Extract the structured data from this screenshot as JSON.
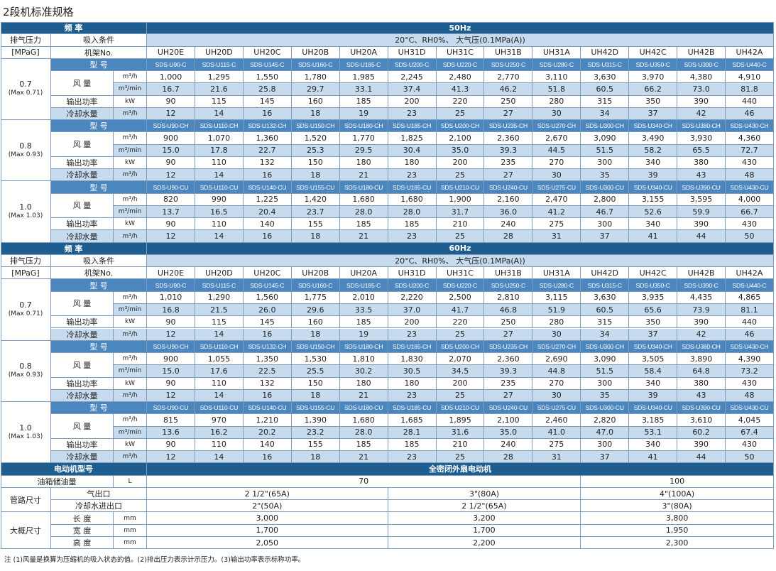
{
  "title": "2段机标准规格",
  "sections": [
    {
      "freq_label": "频 率",
      "freq": "50Hz",
      "pressure_label": "排气压力",
      "pressure_unit": "[MPaG]",
      "intake_label": "吸入条件",
      "intake": "20°C、RH0%、 大气压(0.1MPa(A))",
      "frame_label": "机架No.",
      "frames": [
        "UH20E",
        "UH20D",
        "UH20C",
        "UH20B",
        "UH20A",
        "UH31D",
        "UH31C",
        "UH31B",
        "UH31A",
        "UH42D",
        "UH42C",
        "UH42B",
        "UH42A"
      ],
      "groups": [
        {
          "pressure": "0.7",
          "max": "(Max 0.71)",
          "model_label": "型 号",
          "models": [
            "SDS-U90-C",
            "SDS-U115-C",
            "SDS-U145-C",
            "SDS-U160-C",
            "SDS-U185-C",
            "SDS-U200-C",
            "SDS-U220-C",
            "SDS-U250-C",
            "SDS-U280-C",
            "SDS-U315-C",
            "SDS-U350-C",
            "SDS-U390-C",
            "SDS-U440-C"
          ],
          "airflow_label": "风 量",
          "airflow_h": {
            "unit": "m³/h",
            "values": [
              "1,000",
              "1,295",
              "1,550",
              "1,780",
              "1,985",
              "2,245",
              "2,480",
              "2,770",
              "3,110",
              "3,630",
              "3,970",
              "4,380",
              "4,910"
            ]
          },
          "airflow_min": {
            "unit": "m³/min",
            "values": [
              "16.7",
              "21.6",
              "25.8",
              "29.7",
              "33.1",
              "37.4",
              "41.3",
              "46.2",
              "51.8",
              "60.5",
              "66.2",
              "73.0",
              "81.8"
            ]
          },
          "power": {
            "label": "输出功率",
            "unit": "kW",
            "values": [
              "90",
              "115",
              "145",
              "160",
              "185",
              "200",
              "220",
              "250",
              "280",
              "315",
              "350",
              "390",
              "440"
            ]
          },
          "cooling": {
            "label": "冷却水量",
            "unit": "m³/h",
            "values": [
              "12",
              "14",
              "16",
              "18",
              "19",
              "23",
              "25",
              "27",
              "30",
              "34",
              "37",
              "42",
              "46"
            ]
          }
        },
        {
          "pressure": "0.8",
          "max": "(Max 0.93)",
          "model_label": "型 号",
          "models": [
            "SDS-U90-CH",
            "SDS-U110-CH",
            "SDS-U132-CH",
            "SDS-U150-CH",
            "SDS-U180-CH",
            "SDS-U185-CH",
            "SDS-U200-CH",
            "SDS-U235-CH",
            "SDS-U270-CH",
            "SDS-U300-CH",
            "SDS-U340-CH",
            "SDS-U380-CH",
            "SDS-U430-CH"
          ],
          "airflow_label": "风 量",
          "airflow_h": {
            "unit": "m³/h",
            "values": [
              "900",
              "1,070",
              "1,360",
              "1,520",
              "1,770",
              "1,825",
              "2,100",
              "2,360",
              "2,670",
              "3,090",
              "3,490",
              "3,930",
              "4,360"
            ]
          },
          "airflow_min": {
            "unit": "m³/min",
            "values": [
              "15.0",
              "17.8",
              "22.7",
              "25.3",
              "29.5",
              "30.4",
              "35.0",
              "39.3",
              "44.5",
              "51.5",
              "58.2",
              "65.5",
              "72.7"
            ]
          },
          "power": {
            "label": "输出功率",
            "unit": "kW",
            "values": [
              "90",
              "110",
              "132",
              "150",
              "180",
              "180",
              "200",
              "235",
              "270",
              "300",
              "340",
              "380",
              "430"
            ]
          },
          "cooling": {
            "label": "冷却水量",
            "unit": "m³/h",
            "values": [
              "12",
              "14",
              "16",
              "18",
              "21",
              "23",
              "25",
              "27",
              "30",
              "35",
              "39",
              "43",
              "48"
            ]
          }
        },
        {
          "pressure": "1.0",
          "max": "(Max 1.03)",
          "model_label": "型 号",
          "models": [
            "SDS-U90-CU",
            "SDS-U110-CU",
            "SDS-U140-CU",
            "SDS-U155-CU",
            "SDS-U180-CU",
            "SDS-U185-CU",
            "SDS-U210-CU",
            "SDS-U240-CU",
            "SDS-U275-CU",
            "SDS-U300-CU",
            "SDS-U340-CU",
            "SDS-U390-CU",
            "SDS-U430-CU"
          ],
          "airflow_label": "风 量",
          "airflow_h": {
            "unit": "m³/h",
            "values": [
              "820",
              "990",
              "1,225",
              "1,420",
              "1,680",
              "1,680",
              "1,900",
              "2,160",
              "2,470",
              "2,800",
              "3,155",
              "3,595",
              "4,000"
            ]
          },
          "airflow_min": {
            "unit": "m³/min",
            "values": [
              "13.7",
              "16.5",
              "20.4",
              "23.7",
              "28.0",
              "28.0",
              "31.7",
              "36.0",
              "41.2",
              "46.7",
              "52.6",
              "59.9",
              "66.7"
            ]
          },
          "power": {
            "label": "输出功率",
            "unit": "kW",
            "values": [
              "90",
              "110",
              "140",
              "155",
              "185",
              "185",
              "210",
              "240",
              "275",
              "300",
              "340",
              "390",
              "430"
            ]
          },
          "cooling": {
            "label": "冷却水量",
            "unit": "m³/h",
            "values": [
              "12",
              "14",
              "16",
              "18",
              "21",
              "23",
              "25",
              "28",
              "31",
              "37",
              "41",
              "44",
              "50"
            ]
          }
        }
      ]
    },
    {
      "freq_label": "频 率",
      "freq": "60Hz",
      "pressure_label": "排气压力",
      "pressure_unit": "[MPaG]",
      "intake_label": "吸入条件",
      "intake": "20°C、RH0%、 大气压(0.1MPa(A))",
      "frame_label": "机架No.",
      "frames": [
        "UH20E",
        "UH20D",
        "UH20C",
        "UH20B",
        "UH20A",
        "UH31D",
        "UH31C",
        "UH31B",
        "UH31A",
        "UH42D",
        "UH42C",
        "UH42B",
        "UH42A"
      ],
      "groups": [
        {
          "pressure": "0.7",
          "max": "(Max 0.71)",
          "model_label": "型 号",
          "models": [
            "SDS-U90-C",
            "SDS-U115-C",
            "SDS-U145-C",
            "SDS-U160-C",
            "SDS-U185-C",
            "SDS-U200-C",
            "SDS-U220-C",
            "SDS-U250-C",
            "SDS-U280-C",
            "SDS-U315-C",
            "SDS-U350-C",
            "SDS-U390-C",
            "SDS-U440-C"
          ],
          "airflow_label": "风 量",
          "airflow_h": {
            "unit": "m³/h",
            "values": [
              "1,010",
              "1,290",
              "1,560",
              "1,775",
              "2,010",
              "2,220",
              "2,500",
              "2,810",
              "3,115",
              "3,630",
              "3,935",
              "4,435",
              "4,865"
            ]
          },
          "airflow_min": {
            "unit": "m³/min",
            "values": [
              "16.8",
              "21.5",
              "26.0",
              "29.6",
              "33.5",
              "37.0",
              "41.7",
              "46.8",
              "51.9",
              "60.5",
              "65.6",
              "73.9",
              "81.1"
            ]
          },
          "power": {
            "label": "输出功率",
            "unit": "kW",
            "values": [
              "90",
              "115",
              "145",
              "160",
              "185",
              "200",
              "220",
              "250",
              "280",
              "315",
              "350",
              "390",
              "440"
            ]
          },
          "cooling": {
            "label": "冷却水量",
            "unit": "m³/h",
            "values": [
              "12",
              "14",
              "16",
              "18",
              "19",
              "23",
              "25",
              "27",
              "30",
              "34",
              "37",
              "42",
              "46"
            ]
          }
        },
        {
          "pressure": "0.8",
          "max": "(Max 0.93)",
          "model_label": "型 号",
          "models": [
            "SDS-U90-CH",
            "SDS-U110-CH",
            "SDS-U132-CH",
            "SDS-U150-CH",
            "SDS-U180-CH",
            "SDS-U185-CH",
            "SDS-U200-CH",
            "SDS-U235-CH",
            "SDS-U270-CH",
            "SDS-U300-CH",
            "SDS-U340-CH",
            "SDS-U380-CH",
            "SDS-U430-CH"
          ],
          "airflow_label": "风 量",
          "airflow_h": {
            "unit": "m³/h",
            "values": [
              "900",
              "1,055",
              "1,350",
              "1,530",
              "1,810",
              "1,830",
              "2,070",
              "2,360",
              "2,690",
              "3,090",
              "3,505",
              "3,890",
              "4,390"
            ]
          },
          "airflow_min": {
            "unit": "m³/min",
            "values": [
              "15.0",
              "17.6",
              "22.5",
              "25.5",
              "30.2",
              "30.5",
              "34.5",
              "39.3",
              "44.8",
              "51.5",
              "58.4",
              "64.8",
              "73.2"
            ]
          },
          "power": {
            "label": "输出功率",
            "unit": "kW",
            "values": [
              "90",
              "110",
              "132",
              "150",
              "180",
              "180",
              "200",
              "235",
              "270",
              "300",
              "340",
              "380",
              "430"
            ]
          },
          "cooling": {
            "label": "冷却水量",
            "unit": "m³/h",
            "values": [
              "12",
              "14",
              "16",
              "18",
              "21",
              "23",
              "25",
              "27",
              "30",
              "35",
              "39",
              "43",
              "48"
            ]
          }
        },
        {
          "pressure": "1.0",
          "max": "(Max 1.03)",
          "model_label": "型 号",
          "models": [
            "SDS-U90-CU",
            "SDS-U110-CU",
            "SDS-U140-CU",
            "SDS-U155-CU",
            "SDS-U180-CU",
            "SDS-U185-CU",
            "SDS-U210-CU",
            "SDS-U240-CU",
            "SDS-U275-CU",
            "SDS-U300-CU",
            "SDS-U340-CU",
            "SDS-U390-CU",
            "SDS-U430-CU"
          ],
          "airflow_label": "风 量",
          "airflow_h": {
            "unit": "m³/h",
            "values": [
              "815",
              "970",
              "1,210",
              "1,390",
              "1,680",
              "1,685",
              "1,895",
              "2,100",
              "2,460",
              "2,820",
              "3,185",
              "3,610",
              "4,045"
            ]
          },
          "airflow_min": {
            "unit": "m³/min",
            "values": [
              "13.6",
              "16.2",
              "20.2",
              "23.2",
              "28.0",
              "28.1",
              "31.6",
              "35.0",
              "41.0",
              "47.0",
              "53.1",
              "60.2",
              "67.4"
            ]
          },
          "power": {
            "label": "输出功率",
            "unit": "kW",
            "values": [
              "90",
              "110",
              "140",
              "155",
              "185",
              "185",
              "210",
              "240",
              "275",
              "300",
              "340",
              "390",
              "430"
            ]
          },
          "cooling": {
            "label": "冷却水量",
            "unit": "m³/h",
            "values": [
              "12",
              "14",
              "16",
              "18",
              "21",
              "23",
              "25",
              "28",
              "31",
              "37",
              "41",
              "44",
              "50"
            ]
          }
        }
      ]
    }
  ],
  "motor": {
    "label": "电动机型号",
    "value": "全密闭外扇电动机"
  },
  "oil": {
    "label": "油箱储油量",
    "unit": "L",
    "values": [
      "70",
      "100"
    ]
  },
  "piping": {
    "label": "管路尺寸",
    "rows": [
      {
        "label": "气出口",
        "values": [
          "2 1/2\"(65A)",
          "3\"(80A)",
          "4\"(100A)"
        ]
      },
      {
        "label": "冷却水进出口",
        "values": [
          "2\"(50A)",
          "2 1/2\"(65A)",
          "3\"(80A)"
        ]
      }
    ]
  },
  "dimensions": {
    "label": "大概尺寸",
    "rows": [
      {
        "label": "长 度",
        "unit": "mm",
        "values": [
          "3,000",
          "3,200",
          "3,800"
        ]
      },
      {
        "label": "宽 度",
        "unit": "mm",
        "values": [
          "1,700",
          "1,700",
          "1,950"
        ]
      },
      {
        "label": "高 度",
        "unit": "mm",
        "values": [
          "2,050",
          "2,200",
          "2,300"
        ]
      }
    ]
  },
  "note": "注 (1)风量是换算为压缩机的吸入状态的值。(2)排出压力表示计示压力。(3)输出功率表示标称功率。"
}
